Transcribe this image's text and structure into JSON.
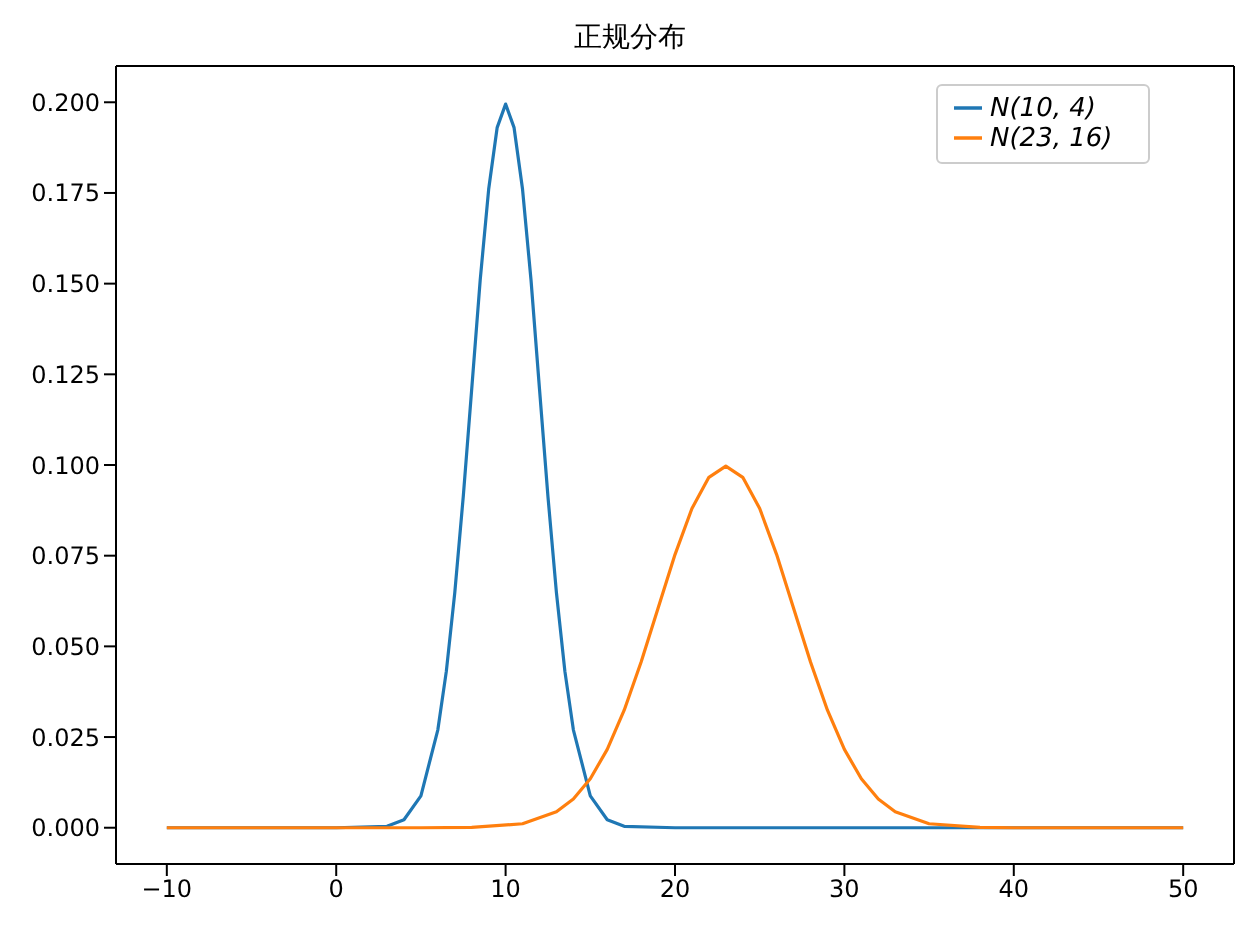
{
  "chart_data": {
    "type": "line",
    "title": "正规分布",
    "legend": "top right",
    "grid": false,
    "marker": "none",
    "line_style": "solid",
    "xlim": [
      -13,
      53
    ],
    "xticks": [
      {
        "value": -10,
        "label": "−10"
      },
      0,
      10,
      20,
      30,
      40,
      50
    ],
    "ylim": [
      -0.01,
      0.21
    ],
    "yticks": [
      {
        "value": 0,
        "label": "0.000"
      },
      {
        "value": 0.025,
        "label": "0.025"
      },
      {
        "value": 0.05,
        "label": "0.050"
      },
      {
        "value": 0.075,
        "label": "0.075"
      },
      {
        "value": 0.1,
        "label": "0.100"
      },
      {
        "value": 0.125,
        "label": "0.125"
      },
      {
        "value": 0.15,
        "label": "0.150"
      },
      {
        "value": 0.175,
        "label": "0.175"
      },
      {
        "value": 0.2,
        "label": "0.200"
      }
    ],
    "series": [
      {
        "name": "N(10, 4)",
        "color": "#1f77b4",
        "x": [
          -10,
          0,
          3,
          4,
          5,
          6,
          6.5,
          7,
          7.5,
          8,
          8.5,
          9,
          9.5,
          10,
          10.5,
          11,
          11.5,
          12,
          12.5,
          13,
          13.5,
          14,
          15,
          16,
          17,
          20,
          50
        ],
        "values": [
          0,
          0,
          0.0004,
          0.0022,
          0.0088,
          0.027,
          0.0431,
          0.0648,
          0.0913,
          0.121,
          0.151,
          0.176,
          0.193,
          0.1995,
          0.193,
          0.176,
          0.151,
          0.121,
          0.0913,
          0.0648,
          0.0431,
          0.027,
          0.0088,
          0.0022,
          0.0004,
          0,
          0
        ]
      },
      {
        "name": "N(23, 16)",
        "color": "#ff7f0e",
        "x": [
          -10,
          5,
          8,
          11,
          13,
          14,
          15,
          16,
          17,
          18,
          19,
          20,
          21,
          22,
          23,
          24,
          25,
          26,
          27,
          28,
          29,
          30,
          31,
          32,
          33,
          35,
          38,
          40,
          50
        ],
        "values": [
          0,
          0,
          0.0001,
          0.0011,
          0.0044,
          0.0079,
          0.0135,
          0.0216,
          0.0324,
          0.0457,
          0.0605,
          0.0753,
          0.088,
          0.0966,
          0.0997,
          0.0966,
          0.088,
          0.0753,
          0.0605,
          0.0457,
          0.0324,
          0.0216,
          0.0135,
          0.0079,
          0.0044,
          0.0011,
          0.0001,
          0,
          0
        ]
      }
    ]
  }
}
